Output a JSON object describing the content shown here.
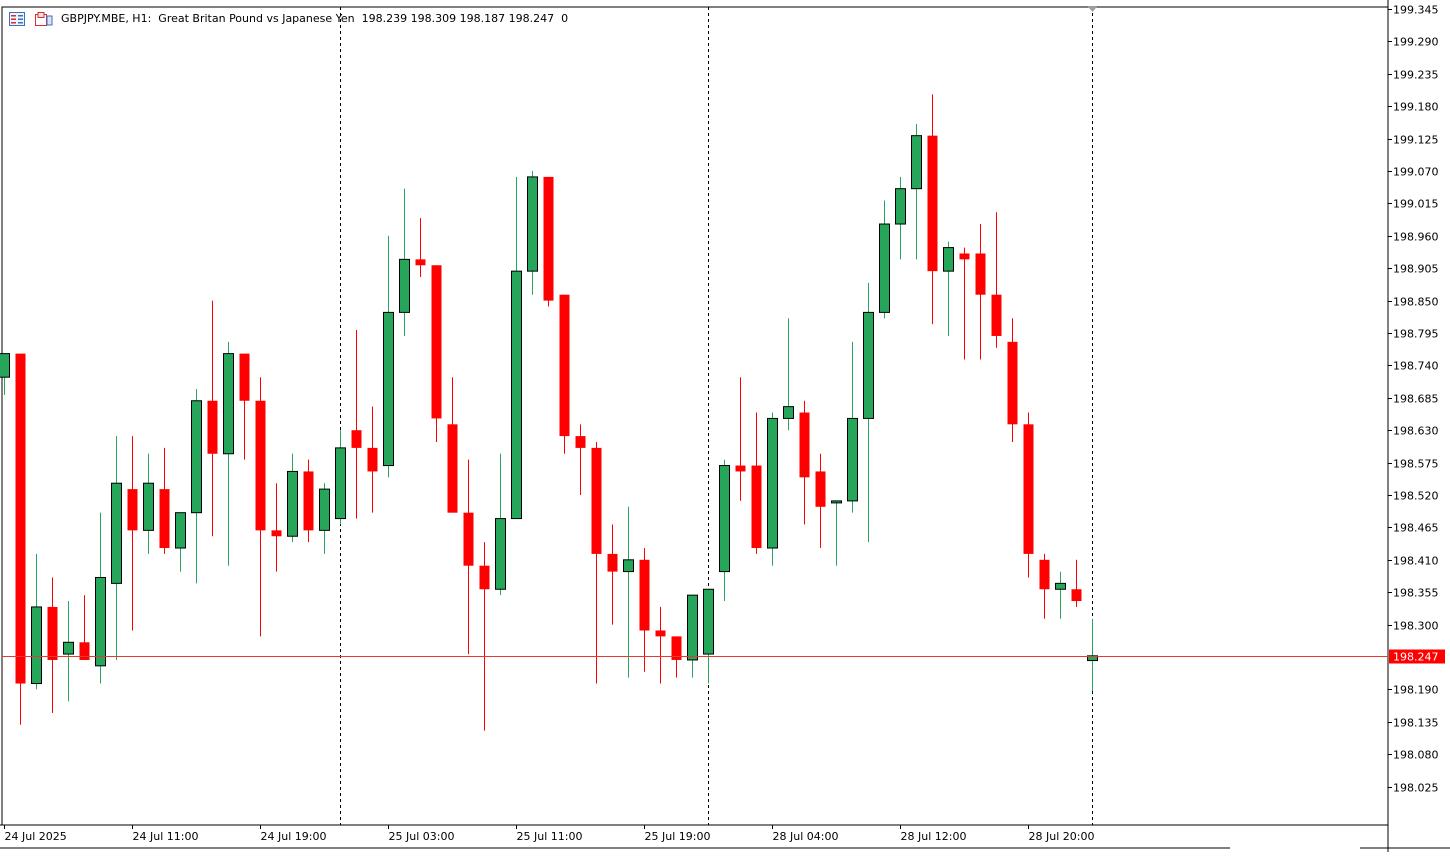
{
  "header": {
    "symbol": "GBPJPY.MBE, H1:",
    "description": "Great Britan Pound vs Japanese Yen",
    "ohlc": "198.239 198.309 198.187 198.247",
    "extra": "0"
  },
  "colors": {
    "bull": "#26a65b",
    "bear": "#ff0000",
    "price_line": "#e53935",
    "axis": "#000000"
  },
  "chart_data": {
    "type": "candlestick",
    "symbol": "GBPJPY.MBE",
    "timeframe": "H1",
    "ylim": [
      197.99,
      199.345
    ],
    "price_ticks": [
      "199.345",
      "199.290",
      "199.235",
      "199.180",
      "199.125",
      "199.070",
      "199.015",
      "198.960",
      "198.905",
      "198.850",
      "198.795",
      "198.740",
      "198.685",
      "198.630",
      "198.575",
      "198.520",
      "198.465",
      "198.410",
      "198.355",
      "198.300",
      "198.190",
      "198.135",
      "198.080",
      "198.025"
    ],
    "current_price": "198.247",
    "time_labels": [
      {
        "label": "24 Jul 2025",
        "index": 0
      },
      {
        "label": "24 Jul 11:00",
        "index": 8
      },
      {
        "label": "24 Jul 19:00",
        "index": 16
      },
      {
        "label": "25 Jul 03:00",
        "index": 24
      },
      {
        "label": "25 Jul 11:00",
        "index": 32
      },
      {
        "label": "25 Jul 19:00",
        "index": 40
      },
      {
        "label": "28 Jul 04:00",
        "index": 48
      },
      {
        "label": "28 Jul 12:00",
        "index": 56
      },
      {
        "label": "28 Jul 20:00",
        "index": 64
      }
    ],
    "separators": [
      21,
      44,
      68
    ],
    "candles": [
      {
        "o": 198.72,
        "h": 198.76,
        "l": 198.69,
        "c": 198.76
      },
      {
        "o": 198.76,
        "h": 198.76,
        "l": 198.13,
        "c": 198.2
      },
      {
        "o": 198.2,
        "h": 198.42,
        "l": 198.19,
        "c": 198.33
      },
      {
        "o": 198.33,
        "h": 198.38,
        "l": 198.15,
        "c": 198.24
      },
      {
        "o": 198.25,
        "h": 198.34,
        "l": 198.17,
        "c": 198.27
      },
      {
        "o": 198.27,
        "h": 198.35,
        "l": 198.24,
        "c": 198.24
      },
      {
        "o": 198.23,
        "h": 198.49,
        "l": 198.2,
        "c": 198.38
      },
      {
        "o": 198.37,
        "h": 198.62,
        "l": 198.24,
        "c": 198.54
      },
      {
        "o": 198.53,
        "h": 198.62,
        "l": 198.29,
        "c": 198.46
      },
      {
        "o": 198.46,
        "h": 198.59,
        "l": 198.42,
        "c": 198.54
      },
      {
        "o": 198.53,
        "h": 198.6,
        "l": 198.42,
        "c": 198.43
      },
      {
        "o": 198.43,
        "h": 198.49,
        "l": 198.39,
        "c": 198.49
      },
      {
        "o": 198.49,
        "h": 198.7,
        "l": 198.37,
        "c": 198.68
      },
      {
        "o": 198.68,
        "h": 198.85,
        "l": 198.45,
        "c": 198.59
      },
      {
        "o": 198.59,
        "h": 198.78,
        "l": 198.4,
        "c": 198.76
      },
      {
        "o": 198.76,
        "h": 198.76,
        "l": 198.58,
        "c": 198.68
      },
      {
        "o": 198.68,
        "h": 198.72,
        "l": 198.28,
        "c": 198.46
      },
      {
        "o": 198.46,
        "h": 198.54,
        "l": 198.39,
        "c": 198.45
      },
      {
        "o": 198.45,
        "h": 198.59,
        "l": 198.44,
        "c": 198.56
      },
      {
        "o": 198.56,
        "h": 198.58,
        "l": 198.44,
        "c": 198.46
      },
      {
        "o": 198.46,
        "h": 198.54,
        "l": 198.42,
        "c": 198.53
      },
      {
        "o": 198.48,
        "h": 198.63,
        "l": 198.47,
        "c": 198.6
      },
      {
        "o": 198.63,
        "h": 198.8,
        "l": 198.48,
        "c": 198.6
      },
      {
        "o": 198.6,
        "h": 198.67,
        "l": 198.49,
        "c": 198.56
      },
      {
        "o": 198.57,
        "h": 198.96,
        "l": 198.55,
        "c": 198.83
      },
      {
        "o": 198.83,
        "h": 199.04,
        "l": 198.79,
        "c": 198.92
      },
      {
        "o": 198.92,
        "h": 198.99,
        "l": 198.89,
        "c": 198.91
      },
      {
        "o": 198.91,
        "h": 198.91,
        "l": 198.61,
        "c": 198.65
      },
      {
        "o": 198.64,
        "h": 198.72,
        "l": 198.49,
        "c": 198.49
      },
      {
        "o": 198.49,
        "h": 198.58,
        "l": 198.25,
        "c": 198.4
      },
      {
        "o": 198.4,
        "h": 198.44,
        "l": 198.12,
        "c": 198.36
      },
      {
        "o": 198.36,
        "h": 198.59,
        "l": 198.35,
        "c": 198.48
      },
      {
        "o": 198.48,
        "h": 199.06,
        "l": 198.48,
        "c": 198.9
      },
      {
        "o": 198.9,
        "h": 199.07,
        "l": 198.86,
        "c": 199.06
      },
      {
        "o": 199.06,
        "h": 199.06,
        "l": 198.84,
        "c": 198.85
      },
      {
        "o": 198.86,
        "h": 198.86,
        "l": 198.59,
        "c": 198.62
      },
      {
        "o": 198.62,
        "h": 198.64,
        "l": 198.52,
        "c": 198.6
      },
      {
        "o": 198.6,
        "h": 198.61,
        "l": 198.2,
        "c": 198.42
      },
      {
        "o": 198.42,
        "h": 198.47,
        "l": 198.3,
        "c": 198.39
      },
      {
        "o": 198.39,
        "h": 198.5,
        "l": 198.21,
        "c": 198.41
      },
      {
        "o": 198.41,
        "h": 198.43,
        "l": 198.22,
        "c": 198.29
      },
      {
        "o": 198.29,
        "h": 198.33,
        "l": 198.2,
        "c": 198.28
      },
      {
        "o": 198.28,
        "h": 198.28,
        "l": 198.21,
        "c": 198.24
      },
      {
        "o": 198.24,
        "h": 198.35,
        "l": 198.21,
        "c": 198.35
      },
      {
        "o": 198.25,
        "h": 198.36,
        "l": 198.2,
        "c": 198.36
      },
      {
        "o": 198.39,
        "h": 198.58,
        "l": 198.34,
        "c": 198.57
      },
      {
        "o": 198.57,
        "h": 198.72,
        "l": 198.51,
        "c": 198.56
      },
      {
        "o": 198.57,
        "h": 198.66,
        "l": 198.42,
        "c": 198.43
      },
      {
        "o": 198.43,
        "h": 198.66,
        "l": 198.4,
        "c": 198.65
      },
      {
        "o": 198.65,
        "h": 198.82,
        "l": 198.63,
        "c": 198.67
      },
      {
        "o": 198.66,
        "h": 198.68,
        "l": 198.47,
        "c": 198.55
      },
      {
        "o": 198.56,
        "h": 198.59,
        "l": 198.43,
        "c": 198.5
      },
      {
        "o": 198.51,
        "h": 198.51,
        "l": 198.4,
        "c": 198.51
      },
      {
        "o": 198.51,
        "h": 198.78,
        "l": 198.49,
        "c": 198.65
      },
      {
        "o": 198.65,
        "h": 198.88,
        "l": 198.44,
        "c": 198.83
      },
      {
        "o": 198.83,
        "h": 199.02,
        "l": 198.82,
        "c": 198.98
      },
      {
        "o": 198.98,
        "h": 199.06,
        "l": 198.92,
        "c": 199.04
      },
      {
        "o": 199.04,
        "h": 199.15,
        "l": 198.92,
        "c": 199.13
      },
      {
        "o": 199.13,
        "h": 199.2,
        "l": 198.81,
        "c": 198.9
      },
      {
        "o": 198.9,
        "h": 198.95,
        "l": 198.79,
        "c": 198.94
      },
      {
        "o": 198.93,
        "h": 198.94,
        "l": 198.75,
        "c": 198.92
      },
      {
        "o": 198.93,
        "h": 198.98,
        "l": 198.75,
        "c": 198.86
      },
      {
        "o": 198.86,
        "h": 199.0,
        "l": 198.77,
        "c": 198.79
      },
      {
        "o": 198.78,
        "h": 198.82,
        "l": 198.61,
        "c": 198.64
      },
      {
        "o": 198.64,
        "h": 198.66,
        "l": 198.38,
        "c": 198.42
      },
      {
        "o": 198.41,
        "h": 198.42,
        "l": 198.31,
        "c": 198.36
      },
      {
        "o": 198.36,
        "h": 198.39,
        "l": 198.31,
        "c": 198.37
      },
      {
        "o": 198.36,
        "h": 198.41,
        "l": 198.33,
        "c": 198.34
      },
      {
        "o": 198.239,
        "h": 198.309,
        "l": 198.187,
        "c": 198.247
      }
    ]
  }
}
